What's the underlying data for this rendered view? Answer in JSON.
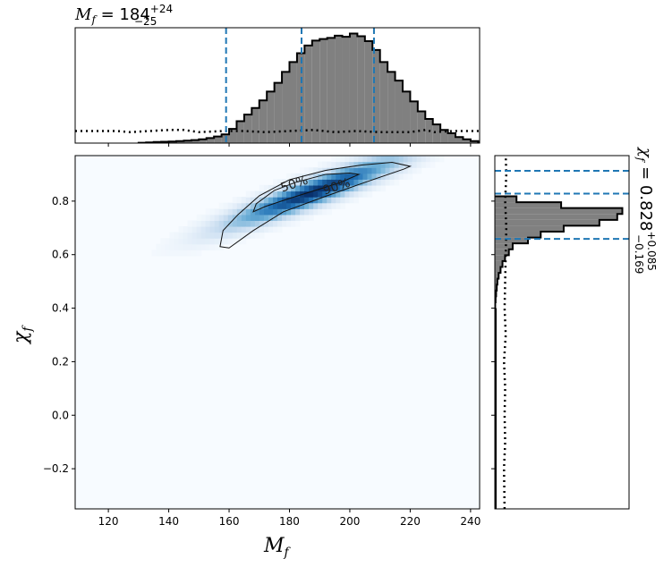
{
  "chart_data": [
    {
      "type": "histogram",
      "panel": "top",
      "title": {
        "symbol": "M",
        "subscript": "f",
        "equals": " = ",
        "median": "184",
        "upper": "+24",
        "lower": "−25"
      },
      "xlim": [
        109,
        243
      ],
      "bin_edges_start": 130,
      "bin_width": 2.5,
      "counts": [
        0.003,
        0.006,
        0.01,
        0.012,
        0.014,
        0.018,
        0.022,
        0.028,
        0.035,
        0.046,
        0.06,
        0.08,
        0.13,
        0.2,
        0.26,
        0.32,
        0.39,
        0.47,
        0.55,
        0.65,
        0.74,
        0.82,
        0.89,
        0.935,
        0.95,
        0.96,
        0.98,
        0.97,
        1.0,
        0.975,
        0.93,
        0.85,
        0.74,
        0.65,
        0.57,
        0.47,
        0.38,
        0.29,
        0.22,
        0.17,
        0.12,
        0.09,
        0.055,
        0.035,
        0.018,
        0.01
      ],
      "prior_line": {
        "x": [
          109,
          123,
          127,
          140,
          145,
          150,
          158,
          165,
          172,
          180,
          188,
          195,
          202,
          210,
          220,
          225,
          228,
          234,
          243
        ],
        "y": [
          0.11,
          0.11,
          0.1,
          0.12,
          0.12,
          0.1,
          0.11,
          0.11,
          0.1,
          0.11,
          0.12,
          0.1,
          0.11,
          0.1,
          0.1,
          0.12,
          0.1,
          0.11,
          0.11
        ]
      },
      "quantile_lines": [
        159,
        184,
        208
      ],
      "hist_fill": "#808080",
      "quantile_color": "#1f77b4"
    },
    {
      "type": "heatmap",
      "panel": "joint",
      "xlabel": {
        "symbol": "M",
        "subscript": "f"
      },
      "ylabel": {
        "symbol": "χ",
        "subscript": "f"
      },
      "xlim": [
        109,
        243
      ],
      "ylim": [
        -0.35,
        0.97
      ],
      "xticks": [
        120,
        140,
        160,
        180,
        200,
        220,
        240
      ],
      "yticks": [
        -0.2,
        0.0,
        0.2,
        0.4,
        0.6,
        0.8
      ],
      "ytick_labels": [
        "−0.2",
        "0.0",
        "0.2",
        "0.4",
        "0.6",
        "0.8"
      ],
      "density_ridge": {
        "center": [
          188,
          0.835
        ],
        "slope": 0.0042,
        "spread_x": 19,
        "spread_perp": 0.035
      },
      "contours": [
        {
          "label": "50%",
          "points": [
            [
              168,
              0.76
            ],
            [
              172,
              0.78
            ],
            [
              180,
              0.81
            ],
            [
              190,
              0.845
            ],
            [
              197,
              0.87
            ],
            [
              203,
              0.9
            ],
            [
              200,
              0.905
            ],
            [
              192,
              0.9
            ],
            [
              182,
              0.87
            ],
            [
              175,
              0.84
            ],
            [
              169,
              0.79
            ],
            [
              168,
              0.76
            ]
          ],
          "label_pos": [
            182,
            0.85
          ]
        },
        {
          "label": "90%",
          "points": [
            [
              157,
              0.63
            ],
            [
              160,
              0.625
            ],
            [
              168,
              0.69
            ],
            [
              178,
              0.76
            ],
            [
              190,
              0.81
            ],
            [
              205,
              0.87
            ],
            [
              218,
              0.92
            ],
            [
              220,
              0.93
            ],
            [
              214,
              0.945
            ],
            [
              204,
              0.935
            ],
            [
              192,
              0.915
            ],
            [
              180,
              0.88
            ],
            [
              170,
              0.82
            ],
            [
              163,
              0.75
            ],
            [
              158,
              0.69
            ],
            [
              157,
              0.63
            ]
          ],
          "label_pos": [
            196,
            0.84
          ]
        }
      ],
      "colormap": [
        "#f7fbff",
        "#c6dbef",
        "#6baed6",
        "#2171b5",
        "#08306b"
      ]
    },
    {
      "type": "histogram",
      "panel": "right",
      "orientation": "horizontal",
      "title": {
        "symbol": "χ",
        "subscript": "f",
        "equals": " = ",
        "median": "0.828",
        "upper": "+0.085",
        "lower": "−0.169"
      },
      "ylim": [
        -0.35,
        0.97
      ],
      "bin_edges_start": 0.4,
      "bin_width": 0.022,
      "counts": [
        0.003,
        0.006,
        0.01,
        0.015,
        0.02,
        0.03,
        0.045,
        0.06,
        0.08,
        0.11,
        0.14,
        0.26,
        0.36,
        0.54,
        0.82,
        0.96,
        1.0,
        0.52,
        0.17
      ],
      "prior_line": {
        "y": [
          -0.35,
          -0.2,
          -0.1,
          0.0,
          0.1,
          0.2,
          0.3,
          0.4,
          0.5,
          0.6,
          0.7,
          0.8,
          0.9,
          0.97
        ],
        "x": [
          0.085,
          0.08,
          0.09,
          0.085,
          0.09,
          0.08,
          0.095,
          0.085,
          0.09,
          0.095,
          0.1,
          0.09,
          0.1,
          0.095
        ]
      },
      "quantile_lines": [
        0.659,
        0.828,
        0.913
      ],
      "hist_fill": "#808080",
      "quantile_color": "#1f77b4"
    }
  ]
}
